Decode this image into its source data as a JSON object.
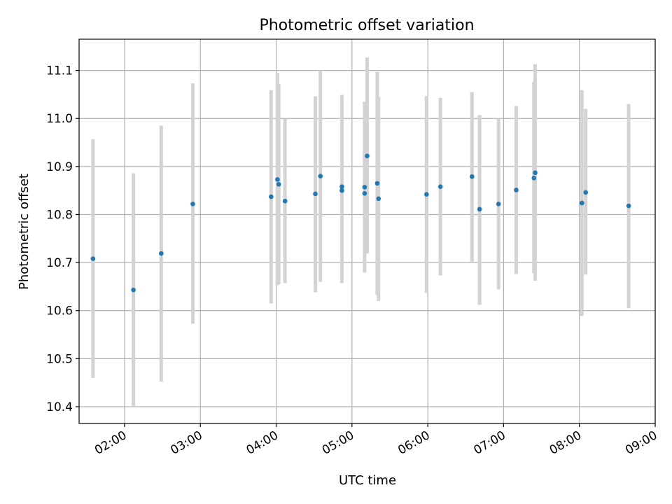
{
  "chart_data": {
    "type": "scatter",
    "title": "Photometric offset variation",
    "xlabel": "UTC time",
    "ylabel": "Photometric offset",
    "x_ticks": [
      "02:00",
      "03:00",
      "04:00",
      "05:00",
      "06:00",
      "07:00",
      "08:00",
      "09:00"
    ],
    "y_ticks": [
      "10.4",
      "10.5",
      "10.6",
      "10.7",
      "10.8",
      "10.9",
      "11.0",
      "11.1"
    ],
    "xlim": [
      "01:24",
      "09:00"
    ],
    "ylim": [
      10.365,
      11.165
    ],
    "grid": true,
    "legend": "none",
    "colors": {
      "point": "#1f77b4",
      "errorbar": "#d3d3d3",
      "grid": "#b0b0b0"
    },
    "series": [
      {
        "points": [
          {
            "x": "01:35",
            "y": 10.708,
            "lo": 10.46,
            "hi": 10.957
          },
          {
            "x": "02:07",
            "y": 10.643,
            "lo": 10.4,
            "hi": 10.886
          },
          {
            "x": "02:29",
            "y": 10.719,
            "lo": 10.452,
            "hi": 10.985
          },
          {
            "x": "02:54",
            "y": 10.822,
            "lo": 10.573,
            "hi": 11.073
          },
          {
            "x": "03:56",
            "y": 10.837,
            "lo": 10.615,
            "hi": 11.059
          },
          {
            "x": "04:01",
            "y": 10.873,
            "lo": 10.653,
            "hi": 11.095
          },
          {
            "x": "04:02",
            "y": 10.863,
            "lo": 10.655,
            "hi": 11.072
          },
          {
            "x": "04:07",
            "y": 10.828,
            "lo": 10.657,
            "hi": 10.999
          },
          {
            "x": "04:31",
            "y": 10.843,
            "lo": 10.638,
            "hi": 11.046
          },
          {
            "x": "04:35",
            "y": 10.88,
            "lo": 10.66,
            "hi": 11.1
          },
          {
            "x": "04:52",
            "y": 10.85,
            "lo": 10.657,
            "hi": 11.045
          },
          {
            "x": "04:52",
            "y": 10.858,
            "lo": 10.666,
            "hi": 11.049
          },
          {
            "x": "05:10",
            "y": 10.857,
            "lo": 10.679,
            "hi": 11.035
          },
          {
            "x": "05:10",
            "y": 10.844,
            "lo": 10.68,
            "hi": 11.009
          },
          {
            "x": "05:12",
            "y": 10.922,
            "lo": 10.719,
            "hi": 11.127
          },
          {
            "x": "05:20",
            "y": 10.865,
            "lo": 10.633,
            "hi": 11.097
          },
          {
            "x": "05:21",
            "y": 10.833,
            "lo": 10.62,
            "hi": 11.045
          },
          {
            "x": "05:59",
            "y": 10.842,
            "lo": 10.637,
            "hi": 11.047
          },
          {
            "x": "06:10",
            "y": 10.858,
            "lo": 10.673,
            "hi": 11.043
          },
          {
            "x": "06:35",
            "y": 10.879,
            "lo": 10.702,
            "hi": 11.055
          },
          {
            "x": "06:41",
            "y": 10.811,
            "lo": 10.612,
            "hi": 11.007
          },
          {
            "x": "06:56",
            "y": 10.822,
            "lo": 10.644,
            "hi": 11.0
          },
          {
            "x": "07:10",
            "y": 10.851,
            "lo": 10.676,
            "hi": 11.026
          },
          {
            "x": "07:24",
            "y": 10.876,
            "lo": 10.678,
            "hi": 11.076
          },
          {
            "x": "07:25",
            "y": 10.887,
            "lo": 10.662,
            "hi": 11.113
          },
          {
            "x": "08:02",
            "y": 10.824,
            "lo": 10.589,
            "hi": 11.059
          },
          {
            "x": "08:05",
            "y": 10.846,
            "lo": 10.675,
            "hi": 11.02
          },
          {
            "x": "08:39",
            "y": 10.818,
            "lo": 10.605,
            "hi": 11.03
          }
        ]
      }
    ]
  }
}
